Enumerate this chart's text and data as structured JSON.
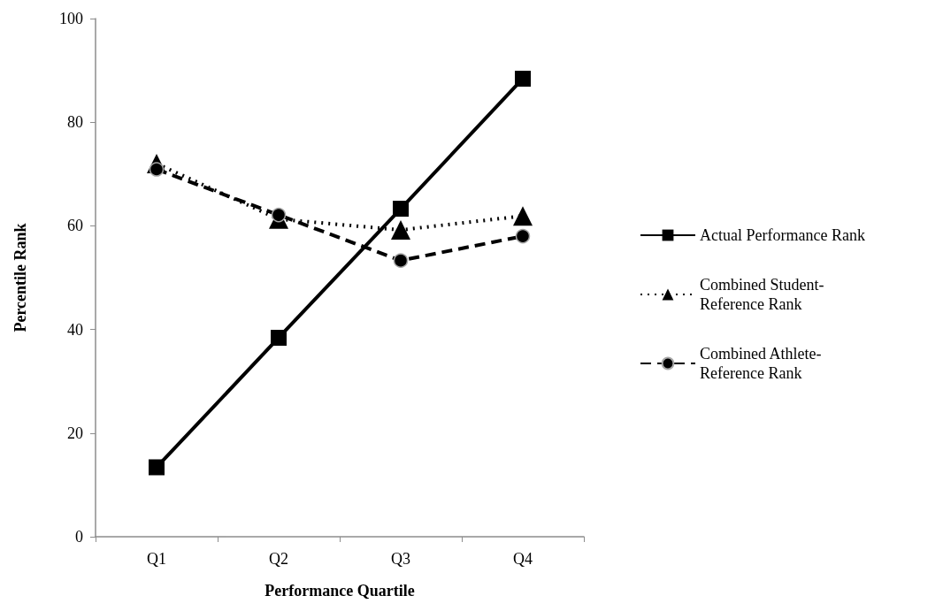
{
  "chart_data": {
    "type": "line",
    "xlabel": "Performance Quartile",
    "ylabel": "Percentile Rank",
    "categories": [
      "Q1",
      "Q2",
      "Q3",
      "Q4"
    ],
    "series": [
      {
        "name": "Actual Performance Rank",
        "color": "#000000",
        "marker": "square",
        "line_style": "solid",
        "values": [
          13.4,
          38.4,
          63.3,
          88.4
        ]
      },
      {
        "name": "Combined Student-Reference Rank",
        "color": "#000000",
        "marker": "triangle",
        "line_style": "dotted",
        "values": [
          72.0,
          61.3,
          59.2,
          61.9
        ]
      },
      {
        "name": "Combined Athlete-Reference Rank",
        "color": "#000000",
        "marker": "circle",
        "line_style": "dashed",
        "values": [
          70.9,
          62.1,
          53.3,
          58.0
        ]
      }
    ],
    "ylim": [
      0,
      100
    ],
    "yticks": [
      0,
      20,
      40,
      60,
      80,
      100
    ],
    "grid": false,
    "legend": "right"
  }
}
